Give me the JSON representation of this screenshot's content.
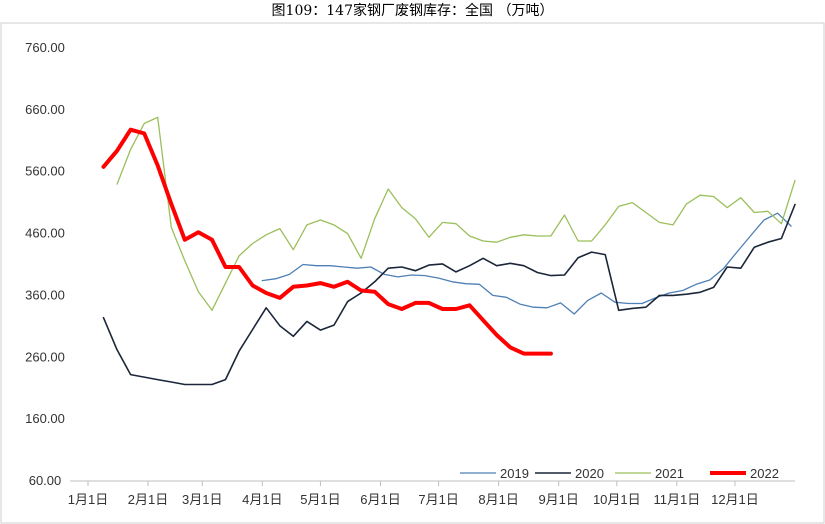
{
  "chart_title": "图109：147家钢厂废钢库存：全国 （万吨）",
  "chart_data": {
    "type": "line",
    "title": "图109：147家钢厂废钢库存：全国 （万吨）",
    "ylim": [
      60,
      760
    ],
    "yticks": [
      60,
      160,
      260,
      360,
      460,
      560,
      660,
      760
    ],
    "ytick_labels": [
      "60.00",
      "160.00",
      "260.00",
      "360.00",
      "460.00",
      "560.00",
      "660.00",
      "760.00"
    ],
    "x_unit": "day_of_year",
    "xlim": [
      1,
      366
    ],
    "xticks": [
      1,
      32,
      60,
      91,
      121,
      152,
      182,
      213,
      244,
      274,
      305,
      335
    ],
    "xtick_labels": [
      "1月1日",
      "2月1日",
      "3月1日",
      "4月1日",
      "5月1日",
      "6月1日",
      "7月1日",
      "8月1日",
      "9月1日",
      "10月1日",
      "11月1日",
      "12月1日"
    ],
    "legend_position": "bottom-right",
    "grid": false,
    "series": [
      {
        "name": "2019",
        "color": "#4e7fb5",
        "width": 1.3,
        "x": [
          91,
          98,
          105,
          112,
          119,
          126,
          133,
          140,
          147,
          154,
          161,
          168,
          175,
          182,
          189,
          196,
          203,
          210,
          217,
          224,
          231,
          238,
          245,
          252,
          259,
          266,
          273,
          280,
          287,
          294,
          301,
          308,
          315,
          322,
          329,
          336,
          343,
          350,
          357,
          364
        ],
        "y": [
          384,
          387,
          394,
          410,
          408,
          408,
          406,
          404,
          406,
          394,
          390,
          393,
          392,
          388,
          382,
          379,
          378,
          360,
          357,
          346,
          341,
          340,
          348,
          330,
          352,
          364,
          349,
          347,
          347,
          356,
          364,
          368,
          378,
          385,
          403,
          430,
          456,
          482,
          493,
          472
        ]
      },
      {
        "name": "2020",
        "color": "#1b2639",
        "width": 1.6,
        "x": [
          9,
          16,
          23,
          30,
          37,
          44,
          51,
          58,
          65,
          72,
          79,
          86,
          93,
          100,
          107,
          114,
          121,
          128,
          135,
          142,
          149,
          156,
          163,
          170,
          177,
          184,
          191,
          198,
          205,
          212,
          219,
          226,
          233,
          240,
          247,
          254,
          261,
          268,
          275,
          282,
          289,
          296,
          303,
          310,
          317,
          324,
          331,
          338,
          345,
          352,
          359,
          366
        ],
        "y": [
          324,
          272,
          232,
          228,
          224,
          220,
          216,
          216,
          216,
          224,
          270,
          305,
          340,
          311,
          294,
          318,
          304,
          312,
          350,
          364,
          382,
          404,
          406,
          400,
          409,
          411,
          398,
          408,
          420,
          408,
          412,
          408,
          397,
          392,
          393,
          421,
          430,
          426,
          336,
          339,
          341,
          360,
          360,
          362,
          365,
          373,
          406,
          404,
          438,
          446,
          452,
          507
        ]
      },
      {
        "name": "2021",
        "color": "#9bbf5b",
        "width": 1.3,
        "x": [
          16,
          23,
          30,
          37,
          44,
          51,
          58,
          65,
          72,
          79,
          86,
          93,
          100,
          107,
          114,
          121,
          128,
          135,
          142,
          149,
          156,
          163,
          170,
          177,
          184,
          191,
          198,
          205,
          212,
          219,
          226,
          233,
          240,
          247,
          254,
          261,
          268,
          275,
          282,
          289,
          296,
          303,
          310,
          317,
          324,
          331,
          338,
          345,
          352,
          359,
          366
        ],
        "y": [
          540,
          596,
          638,
          648,
          470,
          416,
          366,
          336,
          380,
          424,
          444,
          458,
          468,
          434,
          474,
          482,
          474,
          460,
          420,
          484,
          532,
          502,
          484,
          454,
          478,
          476,
          456,
          448,
          446,
          454,
          458,
          456,
          456,
          490,
          448,
          448,
          474,
          504,
          510,
          494,
          478,
          474,
          508,
          522,
          520,
          502,
          518,
          494,
          496,
          476,
          546
        ]
      },
      {
        "name": "2022",
        "color": "#ff0000",
        "width": 4,
        "x": [
          9,
          16,
          23,
          30,
          37,
          44,
          51,
          58,
          65,
          72,
          79,
          86,
          93,
          100,
          107,
          114,
          121,
          128,
          135,
          142,
          149,
          156,
          163,
          170,
          177,
          184,
          191,
          198,
          205,
          212,
          219,
          226,
          233,
          240
        ],
        "y": [
          568,
          594,
          628,
          622,
          570,
          508,
          450,
          462,
          450,
          406,
          406,
          376,
          364,
          356,
          374,
          376,
          380,
          374,
          382,
          368,
          366,
          346,
          338,
          348,
          348,
          338,
          338,
          344,
          320,
          296,
          276,
          266,
          266,
          266
        ]
      }
    ]
  }
}
